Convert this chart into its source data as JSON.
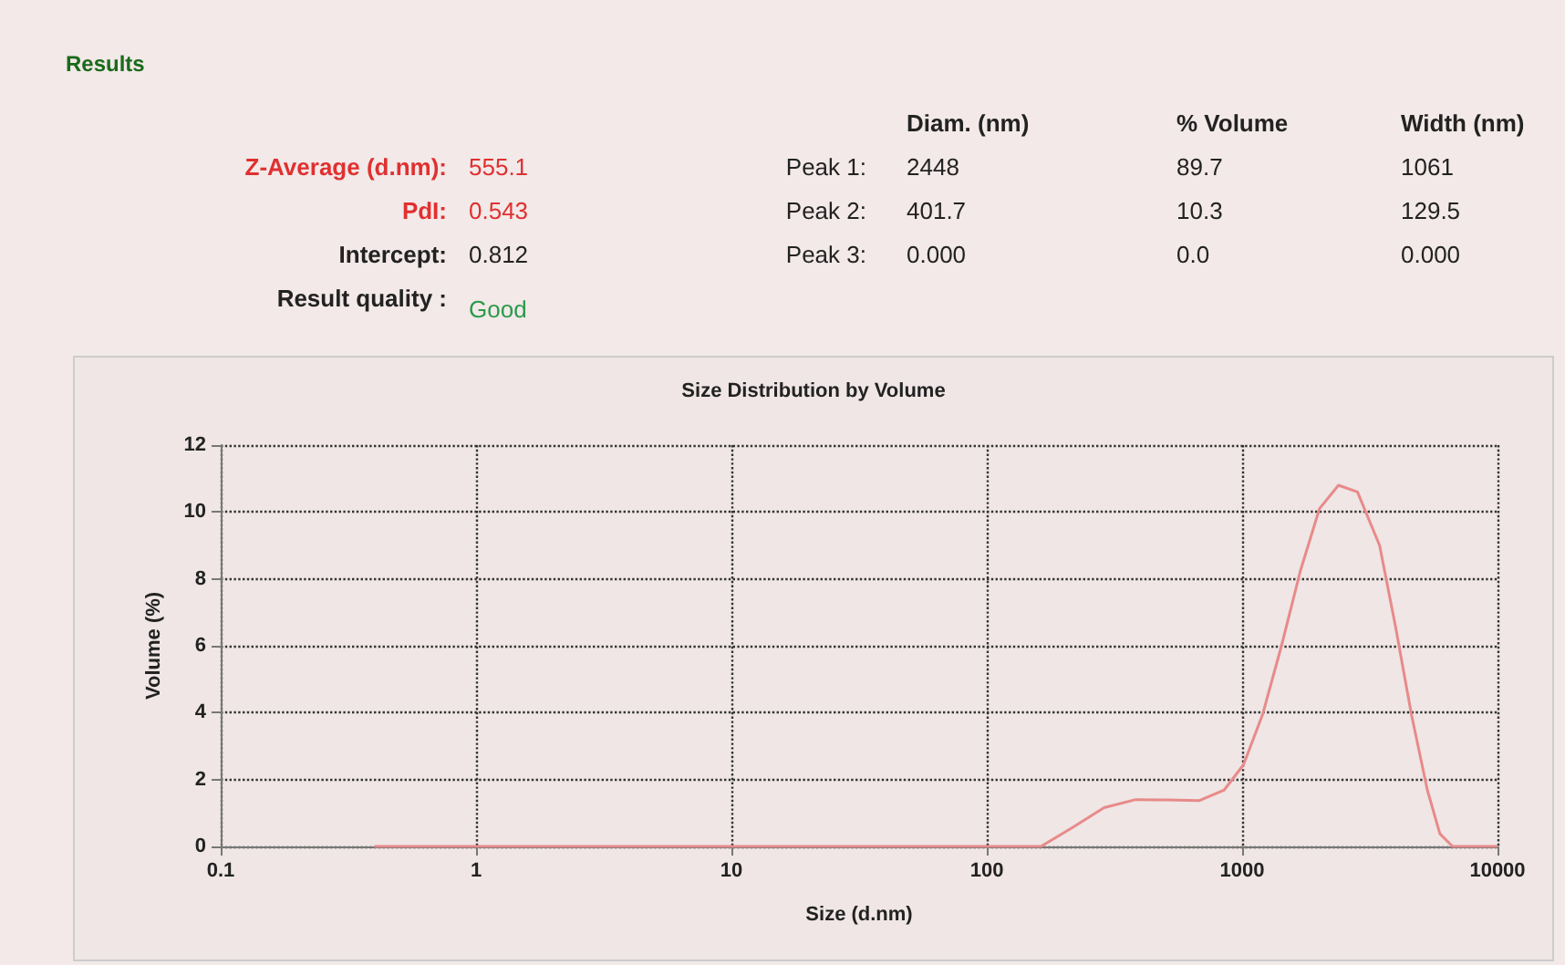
{
  "chart_data": [
    {
      "type": "other",
      "title": "Results",
      "annotations": [
        "Z-Average (d.nm):",
        "555.1",
        "PdI:",
        "0.543",
        "Intercept:",
        "0.812",
        "Result quality :",
        "Good",
        "Diam. (nm)",
        "% Volume",
        "Width (nm)",
        "Peak 1:",
        "2448",
        "89.7",
        "1061",
        "Peak 2:",
        "401.7",
        "10.3",
        "129.5",
        "Peak 3:",
        "0.000",
        "0.0",
        "0.000"
      ]
    },
    {
      "type": "line",
      "title": "Size Distribution by Volume",
      "xlabel": "Size (d.nm)",
      "ylabel": "Volume (%)",
      "log": "x",
      "grid": true,
      "marker": "none",
      "line_style": "solid",
      "xlim": [
        0.1,
        10000
      ],
      "xticks": [
        0.1,
        1,
        10,
        100,
        1000,
        10000
      ],
      "ylim": [
        0,
        12
      ],
      "yticks": [
        0,
        2,
        4,
        6,
        8,
        10,
        12
      ],
      "series": [
        {
          "color": "#e88a8a",
          "x": [
            0.4,
            163,
            216,
            288,
            383,
            509,
            678,
            851,
            1012,
            1202,
            1426,
            1692,
            2009,
            2384,
            2829,
            3454,
            3990,
            4603,
            5310,
            5948,
            6668,
            10000
          ],
          "values": [
            0,
            0,
            0.56,
            1.16,
            1.4,
            1.39,
            1.37,
            1.69,
            2.44,
            3.94,
            6.0,
            8.25,
            10.1,
            10.8,
            10.6,
            9.0,
            6.56,
            3.94,
            1.69,
            0.38,
            0,
            0
          ]
        }
      ]
    }
  ]
}
